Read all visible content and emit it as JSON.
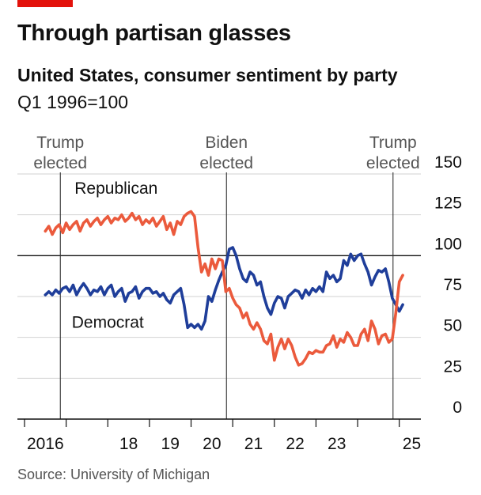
{
  "header": {
    "title": "Through partisan glasses",
    "subtitle": "United States, consumer sentiment by party",
    "unit": "Q1 1996=100"
  },
  "footer": {
    "source": "Source: University of Michigan"
  },
  "colors": {
    "accent": "#e3120b",
    "republican": "#eb5a3c",
    "democrat": "#1f3e9a",
    "grid": "#d2d2d2",
    "axis": "#111111"
  },
  "chart_data": {
    "type": "line",
    "title": "Through partisan glasses",
    "subtitle": "United States, consumer sentiment by party",
    "ylabel": "Q1 1996=100",
    "xlim": [
      2016.0,
      2025.5
    ],
    "ylim": [
      0,
      150
    ],
    "yticks": [
      0,
      25,
      50,
      75,
      100,
      125,
      150
    ],
    "reference_line": 100,
    "x_tick_positions": [
      2016,
      2017,
      2018,
      2019,
      2020,
      2021,
      2022,
      2023,
      2024,
      2025
    ],
    "x_tick_labels": [
      {
        "x": 2016.5,
        "label": "2016"
      },
      {
        "x": 2018.5,
        "label": "18"
      },
      {
        "x": 2019.5,
        "label": "19"
      },
      {
        "x": 2020.5,
        "label": "20"
      },
      {
        "x": 2021.5,
        "label": "21"
      },
      {
        "x": 2022.5,
        "label": "22"
      },
      {
        "x": 2023.5,
        "label": "23"
      },
      {
        "x": 2025.3,
        "label": "25"
      }
    ],
    "events": [
      {
        "x": 2016.86,
        "line1": "Trump",
        "line2": "elected"
      },
      {
        "x": 2020.85,
        "line1": "Biden",
        "line2": "elected"
      },
      {
        "x": 2024.85,
        "line1": "Trump",
        "line2": "elected"
      }
    ],
    "series": [
      {
        "name": "Republican",
        "color": "#eb5a3c",
        "label_at": [
          2018.2,
          138
        ],
        "x": [
          2016.5,
          2016.583,
          2016.667,
          2016.75,
          2016.833,
          2016.917,
          2017.0,
          2017.083,
          2017.167,
          2017.25,
          2017.333,
          2017.417,
          2017.5,
          2017.583,
          2017.667,
          2017.75,
          2017.833,
          2017.917,
          2018.0,
          2018.083,
          2018.167,
          2018.25,
          2018.333,
          2018.417,
          2018.5,
          2018.583,
          2018.667,
          2018.75,
          2018.833,
          2018.917,
          2019.0,
          2019.083,
          2019.167,
          2019.25,
          2019.333,
          2019.417,
          2019.5,
          2019.583,
          2019.667,
          2019.75,
          2019.833,
          2019.917,
          2020.0,
          2020.083,
          2020.167,
          2020.25,
          2020.333,
          2020.417,
          2020.5,
          2020.583,
          2020.667,
          2020.75,
          2020.833,
          2020.917,
          2021.0,
          2021.083,
          2021.167,
          2021.25,
          2021.333,
          2021.417,
          2021.5,
          2021.583,
          2021.667,
          2021.75,
          2021.833,
          2021.917,
          2022.0,
          2022.083,
          2022.167,
          2022.25,
          2022.333,
          2022.417,
          2022.5,
          2022.583,
          2022.667,
          2022.75,
          2022.833,
          2022.917,
          2023.0,
          2023.083,
          2023.167,
          2023.25,
          2023.333,
          2023.417,
          2023.5,
          2023.583,
          2023.667,
          2023.75,
          2023.833,
          2023.917,
          2024.0,
          2024.083,
          2024.167,
          2024.25,
          2024.333,
          2024.417,
          2024.5,
          2024.583,
          2024.667,
          2024.75,
          2024.833,
          2024.917,
          2025.0,
          2025.083
        ],
        "values": [
          115,
          118,
          113,
          117,
          119,
          114,
          120,
          116,
          119,
          121,
          115,
          120,
          122,
          118,
          121,
          123,
          119,
          122,
          124,
          120,
          123,
          122,
          125,
          121,
          123,
          126,
          122,
          124,
          119,
          122,
          120,
          123,
          118,
          121,
          124,
          116,
          120,
          113,
          121,
          119,
          124,
          126,
          127,
          124,
          105,
          90,
          95,
          88,
          98,
          92,
          98,
          97,
          78,
          80,
          74,
          70,
          68,
          62,
          65,
          58,
          55,
          59,
          55,
          48,
          46,
          52,
          36,
          44,
          49,
          43,
          49,
          45,
          38,
          33,
          34,
          37,
          41,
          40,
          42,
          41,
          41,
          45,
          46,
          51,
          44,
          49,
          47,
          53,
          50,
          45,
          45,
          52,
          55,
          48,
          60,
          55,
          46,
          51,
          52,
          47,
          49,
          65,
          84,
          88
        ]
      },
      {
        "name": "Democrat",
        "color": "#1f3e9a",
        "label_at": [
          2018.0,
          56
        ],
        "x": [
          2016.5,
          2016.583,
          2016.667,
          2016.75,
          2016.833,
          2016.917,
          2017.0,
          2017.083,
          2017.167,
          2017.25,
          2017.333,
          2017.417,
          2017.5,
          2017.583,
          2017.667,
          2017.75,
          2017.833,
          2017.917,
          2018.0,
          2018.083,
          2018.167,
          2018.25,
          2018.333,
          2018.417,
          2018.5,
          2018.583,
          2018.667,
          2018.75,
          2018.833,
          2018.917,
          2019.0,
          2019.083,
          2019.167,
          2019.25,
          2019.333,
          2019.417,
          2019.5,
          2019.583,
          2019.667,
          2019.75,
          2019.833,
          2019.917,
          2020.0,
          2020.083,
          2020.167,
          2020.25,
          2020.333,
          2020.417,
          2020.5,
          2020.583,
          2020.667,
          2020.75,
          2020.833,
          2020.917,
          2021.0,
          2021.083,
          2021.167,
          2021.25,
          2021.333,
          2021.417,
          2021.5,
          2021.583,
          2021.667,
          2021.75,
          2021.833,
          2021.917,
          2022.0,
          2022.083,
          2022.167,
          2022.25,
          2022.333,
          2022.417,
          2022.5,
          2022.583,
          2022.667,
          2022.75,
          2022.833,
          2022.917,
          2023.0,
          2023.083,
          2023.167,
          2023.25,
          2023.333,
          2023.417,
          2023.5,
          2023.583,
          2023.667,
          2023.75,
          2023.833,
          2023.917,
          2024.0,
          2024.083,
          2024.167,
          2024.25,
          2024.333,
          2024.417,
          2024.5,
          2024.583,
          2024.667,
          2024.75,
          2024.833,
          2024.917,
          2025.0,
          2025.083
        ],
        "values": [
          76,
          78,
          76,
          79,
          77,
          80,
          81,
          78,
          82,
          76,
          80,
          83,
          80,
          76,
          79,
          78,
          81,
          76,
          80,
          82,
          75,
          78,
          80,
          72,
          77,
          78,
          81,
          74,
          78,
          80,
          80,
          77,
          78,
          75,
          77,
          73,
          71,
          76,
          78,
          80,
          70,
          56,
          58,
          56,
          58,
          55,
          60,
          75,
          72,
          79,
          85,
          90,
          94,
          104,
          105,
          100,
          92,
          86,
          84,
          90,
          88,
          82,
          84,
          75,
          68,
          64,
          71,
          75,
          74,
          68,
          75,
          77,
          79,
          78,
          74,
          79,
          76,
          80,
          78,
          81,
          78,
          90,
          86,
          88,
          84,
          86,
          97,
          94,
          101,
          97,
          100,
          101,
          95,
          90,
          82,
          87,
          91,
          90,
          92,
          84,
          74,
          70,
          66,
          70
        ]
      }
    ]
  }
}
